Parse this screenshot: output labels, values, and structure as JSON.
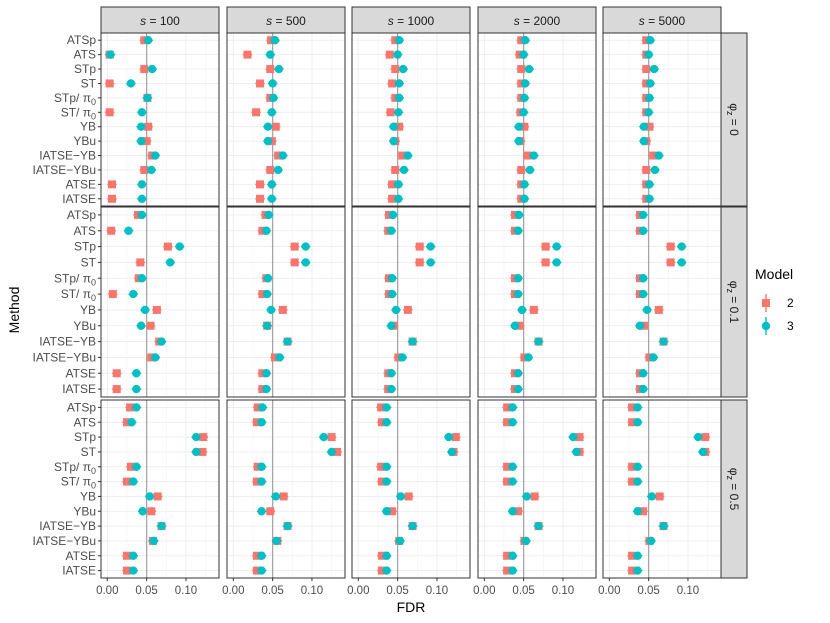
{
  "chart_data": {
    "type": "scatter",
    "title": "",
    "xlabel": "FDR",
    "ylabel": "Method",
    "xlim": [
      -0.008,
      0.142
    ],
    "x_ticks": [
      0.0,
      0.05,
      0.1
    ],
    "x_tick_labels": [
      "0.00",
      "0.05",
      "0.10"
    ],
    "reference_line_x": 0.05,
    "column_facets": [
      {
        "var": "s",
        "eq": " = ",
        "value": "100"
      },
      {
        "var": "s",
        "eq": " = ",
        "value": "500"
      },
      {
        "var": "s",
        "eq": " = ",
        "value": "1000"
      },
      {
        "var": "s",
        "eq": " = ",
        "value": "2000"
      },
      {
        "var": "s",
        "eq": " = ",
        "value": "5000"
      }
    ],
    "row_facets": [
      {
        "phi": "φ",
        "sub": "z",
        "rest": " = 0"
      },
      {
        "phi": "φ",
        "sub": "z",
        "rest": " = 0.1"
      },
      {
        "phi": "φ",
        "sub": "z",
        "rest": " = 0.5"
      }
    ],
    "methods": [
      {
        "base": "ATSp"
      },
      {
        "base": "ATS"
      },
      {
        "base": "STp"
      },
      {
        "base": "ST"
      },
      {
        "base": "STp/ π",
        "sub": "0"
      },
      {
        "base": "ST/ π",
        "sub": "0"
      },
      {
        "base": "YB"
      },
      {
        "base": "YBu"
      },
      {
        "base": "IATSE−YB"
      },
      {
        "base": "IATSE−YBu"
      },
      {
        "base": "ATSE"
      },
      {
        "base": "IATSE"
      }
    ],
    "legend": {
      "title": "Model",
      "position": "right",
      "items": [
        {
          "label": "2",
          "color": "#F8766D",
          "shape": "square"
        },
        {
          "label": "3",
          "color": "#00BFC4",
          "shape": "circle"
        }
      ]
    },
    "series": [
      {
        "name": "2",
        "values": [
          [
            [
              0.047,
              0.003,
              0.047,
              0.003,
              0.051,
              0.003,
              0.052,
              0.05,
              0.057,
              0.047,
              0.006,
              0.006
            ],
            [
              0.048,
              0.018,
              0.047,
              0.034,
              0.047,
              0.029,
              0.054,
              0.049,
              0.057,
              0.047,
              0.034,
              0.034
            ],
            [
              0.047,
              0.04,
              0.047,
              0.043,
              0.047,
              0.041,
              0.052,
              0.047,
              0.056,
              0.047,
              0.043,
              0.043
            ],
            [
              0.047,
              0.045,
              0.047,
              0.047,
              0.047,
              0.046,
              0.051,
              0.046,
              0.055,
              0.047,
              0.047,
              0.047
            ],
            [
              0.047,
              0.047,
              0.047,
              0.047,
              0.047,
              0.047,
              0.051,
              0.047,
              0.056,
              0.047,
              0.047,
              0.047
            ]
          ],
          [
            [
              0.039,
              0.005,
              0.077,
              0.042,
              0.04,
              0.007,
              0.063,
              0.055,
              0.066,
              0.056,
              0.012,
              0.012
            ],
            [
              0.041,
              0.037,
              0.078,
              0.078,
              0.042,
              0.037,
              0.063,
              0.043,
              0.069,
              0.053,
              0.037,
              0.037
            ],
            [
              0.039,
              0.038,
              0.078,
              0.078,
              0.039,
              0.039,
              0.063,
              0.045,
              0.069,
              0.051,
              0.038,
              0.038
            ],
            [
              0.039,
              0.039,
              0.078,
              0.078,
              0.039,
              0.039,
              0.063,
              0.045,
              0.069,
              0.051,
              0.039,
              0.039
            ],
            [
              0.039,
              0.039,
              0.078,
              0.078,
              0.039,
              0.039,
              0.063,
              0.044,
              0.069,
              0.051,
              0.039,
              0.039
            ]
          ],
          [
            [
              0.029,
              0.025,
              0.122,
              0.121,
              0.03,
              0.025,
              0.064,
              0.056,
              0.069,
              0.058,
              0.025,
              0.025
            ],
            [
              0.031,
              0.03,
              0.125,
              0.132,
              0.031,
              0.03,
              0.064,
              0.047,
              0.069,
              0.056,
              0.03,
              0.03
            ],
            [
              0.029,
              0.03,
              0.124,
              0.121,
              0.029,
              0.03,
              0.064,
              0.043,
              0.069,
              0.052,
              0.03,
              0.03
            ],
            [
              0.029,
              0.029,
              0.121,
              0.121,
              0.029,
              0.029,
              0.064,
              0.043,
              0.069,
              0.051,
              0.029,
              0.029
            ],
            [
              0.029,
              0.029,
              0.122,
              0.122,
              0.029,
              0.029,
              0.064,
              0.043,
              0.069,
              0.051,
              0.029,
              0.029
            ]
          ]
        ]
      },
      {
        "name": "3",
        "values": [
          [
            [
              0.052,
              0.004,
              0.057,
              0.03,
              0.051,
              0.044,
              0.043,
              0.043,
              0.061,
              0.056,
              0.044,
              0.044
            ],
            [
              0.053,
              0.047,
              0.058,
              0.05,
              0.051,
              0.049,
              0.044,
              0.044,
              0.063,
              0.057,
              0.049,
              0.049
            ],
            [
              0.052,
              0.05,
              0.057,
              0.052,
              0.052,
              0.051,
              0.045,
              0.045,
              0.063,
              0.058,
              0.051,
              0.051
            ],
            [
              0.052,
              0.05,
              0.057,
              0.052,
              0.051,
              0.05,
              0.044,
              0.044,
              0.063,
              0.058,
              0.051,
              0.051
            ],
            [
              0.052,
              0.05,
              0.057,
              0.052,
              0.051,
              0.05,
              0.044,
              0.044,
              0.063,
              0.058,
              0.051,
              0.051
            ]
          ],
          [
            [
              0.044,
              0.027,
              0.092,
              0.08,
              0.044,
              0.033,
              0.048,
              0.043,
              0.069,
              0.061,
              0.037,
              0.037
            ],
            [
              0.045,
              0.042,
              0.092,
              0.092,
              0.044,
              0.043,
              0.048,
              0.043,
              0.069,
              0.059,
              0.042,
              0.042
            ],
            [
              0.044,
              0.042,
              0.092,
              0.092,
              0.043,
              0.043,
              0.048,
              0.042,
              0.069,
              0.056,
              0.042,
              0.042
            ],
            [
              0.044,
              0.043,
              0.092,
              0.092,
              0.043,
              0.043,
              0.048,
              0.039,
              0.069,
              0.056,
              0.043,
              0.043
            ],
            [
              0.043,
              0.043,
              0.092,
              0.092,
              0.043,
              0.043,
              0.048,
              0.039,
              0.069,
              0.056,
              0.043,
              0.043
            ]
          ],
          [
            [
              0.037,
              0.031,
              0.113,
              0.113,
              0.037,
              0.033,
              0.054,
              0.045,
              0.069,
              0.059,
              0.033,
              0.033
            ],
            [
              0.037,
              0.036,
              0.115,
              0.125,
              0.036,
              0.036,
              0.054,
              0.036,
              0.069,
              0.055,
              0.036,
              0.036
            ],
            [
              0.036,
              0.036,
              0.115,
              0.119,
              0.036,
              0.036,
              0.054,
              0.036,
              0.069,
              0.053,
              0.036,
              0.036
            ],
            [
              0.036,
              0.036,
              0.113,
              0.117,
              0.036,
              0.036,
              0.054,
              0.036,
              0.069,
              0.053,
              0.036,
              0.036
            ],
            [
              0.036,
              0.036,
              0.113,
              0.119,
              0.036,
              0.036,
              0.054,
              0.036,
              0.069,
              0.053,
              0.036,
              0.036
            ]
          ]
        ]
      }
    ]
  }
}
